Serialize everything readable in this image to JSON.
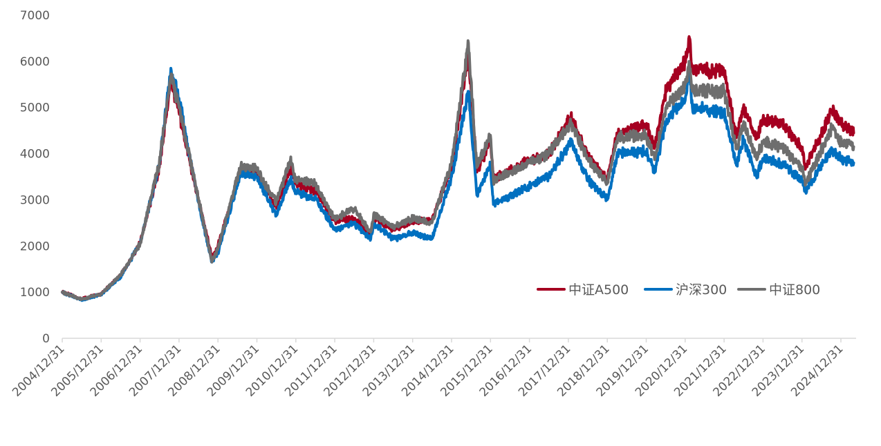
{
  "chart_data": {
    "type": "line",
    "title": "",
    "xlabel": "",
    "ylabel": "",
    "ylim": [
      0,
      7000
    ],
    "yticks": [
      0,
      1000,
      2000,
      3000,
      4000,
      5000,
      6000,
      7000
    ],
    "xticks": [
      "2004/12/31",
      "2005/12/31",
      "2006/12/31",
      "2007/12/31",
      "2008/12/31",
      "2009/12/31",
      "2010/12/31",
      "2011/12/31",
      "2012/12/31",
      "2013/12/31",
      "2014/12/31",
      "2015/12/31",
      "2016/12/31",
      "2017/12/31",
      "2018/12/31",
      "2019/12/31",
      "2020/12/31",
      "2021/12/31",
      "2022/12/31",
      "2023/12/31",
      "2024/12/31"
    ],
    "grid": false,
    "legend_position": "right",
    "series": [
      {
        "name": "中证A500",
        "color": "#A50021",
        "points": [
          [
            "2004/12/31",
            1000
          ],
          [
            "2005/06/30",
            850
          ],
          [
            "2005/12/31",
            960
          ],
          [
            "2006/06/30",
            1350
          ],
          [
            "2006/12/31",
            2050
          ],
          [
            "2007/06/30",
            3700
          ],
          [
            "2007/10/16",
            5600
          ],
          [
            "2007/12/31",
            4900
          ],
          [
            "2008/06/30",
            3000
          ],
          [
            "2008/11/04",
            1750
          ],
          [
            "2008/12/31",
            2000
          ],
          [
            "2009/08/04",
            3650
          ],
          [
            "2009/12/31",
            3550
          ],
          [
            "2010/06/30",
            2850
          ],
          [
            "2010/11/10",
            3700
          ],
          [
            "2010/12/31",
            3350
          ],
          [
            "2011/06/30",
            3200
          ],
          [
            "2011/12/31",
            2550
          ],
          [
            "2012/06/30",
            2600
          ],
          [
            "2012/12/03",
            2250
          ],
          [
            "2012/12/31",
            2600
          ],
          [
            "2013/06/30",
            2350
          ],
          [
            "2013/12/31",
            2550
          ],
          [
            "2014/06/30",
            2550
          ],
          [
            "2014/12/31",
            3700
          ],
          [
            "2015/06/08",
            6200
          ],
          [
            "2015/08/26",
            3600
          ],
          [
            "2015/12/31",
            4300
          ],
          [
            "2016/01/28",
            3450
          ],
          [
            "2016/12/31",
            3850
          ],
          [
            "2017/06/30",
            4000
          ],
          [
            "2018/01/24",
            4800
          ],
          [
            "2018/06/30",
            3950
          ],
          [
            "2018/12/31",
            3450
          ],
          [
            "2019/04/08",
            4450
          ],
          [
            "2019/12/31",
            4600
          ],
          [
            "2020/03/23",
            4150
          ],
          [
            "2020/07/10",
            5400
          ],
          [
            "2020/12/31",
            6000
          ],
          [
            "2021/02/10",
            6500
          ],
          [
            "2021/03/09",
            5800
          ],
          [
            "2021/12/31",
            5800
          ],
          [
            "2022/04/26",
            4350
          ],
          [
            "2022/06/30",
            5000
          ],
          [
            "2022/10/31",
            4350
          ],
          [
            "2022/12/31",
            4750
          ],
          [
            "2023/06/30",
            4650
          ],
          [
            "2023/12/31",
            4100
          ],
          [
            "2024/02/05",
            3700
          ],
          [
            "2024/10/08",
            4950
          ],
          [
            "2024/12/31",
            4650
          ],
          [
            "2025/04/30",
            4450
          ]
        ]
      },
      {
        "name": "沪深300",
        "color": "#0070C0",
        "points": [
          [
            "2004/12/31",
            1000
          ],
          [
            "2005/06/30",
            830
          ],
          [
            "2005/12/31",
            950
          ],
          [
            "2006/06/30",
            1330
          ],
          [
            "2006/12/31",
            2050
          ],
          [
            "2007/06/30",
            3750
          ],
          [
            "2007/10/16",
            5850
          ],
          [
            "2007/12/31",
            5200
          ],
          [
            "2008/06/30",
            2950
          ],
          [
            "2008/11/04",
            1650
          ],
          [
            "2008/12/31",
            1850
          ],
          [
            "2009/08/04",
            3600
          ],
          [
            "2009/12/31",
            3500
          ],
          [
            "2010/06/30",
            2650
          ],
          [
            "2010/11/10",
            3450
          ],
          [
            "2010/12/31",
            3150
          ],
          [
            "2011/06/30",
            3050
          ],
          [
            "2011/12/31",
            2350
          ],
          [
            "2012/06/30",
            2500
          ],
          [
            "2012/12/03",
            2150
          ],
          [
            "2012/12/31",
            2500
          ],
          [
            "2013/06/30",
            2150
          ],
          [
            "2013/12/31",
            2300
          ],
          [
            "2014/06/30",
            2150
          ],
          [
            "2014/12/31",
            3500
          ],
          [
            "2015/06/08",
            5350
          ],
          [
            "2015/08/26",
            3100
          ],
          [
            "2015/12/31",
            3750
          ],
          [
            "2016/01/28",
            2900
          ],
          [
            "2016/12/31",
            3300
          ],
          [
            "2017/06/30",
            3500
          ],
          [
            "2018/01/24",
            4250
          ],
          [
            "2018/06/30",
            3450
          ],
          [
            "2018/12/31",
            3000
          ],
          [
            "2019/04/08",
            4000
          ],
          [
            "2019/12/31",
            4050
          ],
          [
            "2020/03/23",
            3600
          ],
          [
            "2020/07/10",
            4750
          ],
          [
            "2020/12/31",
            5150
          ],
          [
            "2021/02/10",
            5800
          ],
          [
            "2021/03/09",
            5000
          ],
          [
            "2021/12/31",
            4900
          ],
          [
            "2022/04/26",
            3750
          ],
          [
            "2022/06/30",
            4300
          ],
          [
            "2022/10/31",
            3500
          ],
          [
            "2022/12/31",
            3900
          ],
          [
            "2023/06/30",
            3800
          ],
          [
            "2023/12/31",
            3400
          ],
          [
            "2024/02/05",
            3200
          ],
          [
            "2024/10/08",
            4100
          ],
          [
            "2024/12/31",
            3900
          ],
          [
            "2025/04/30",
            3800
          ]
        ]
      },
      {
        "name": "中证800",
        "color": "#6E6E6E",
        "points": [
          [
            "2004/12/31",
            1000
          ],
          [
            "2005/06/30",
            840
          ],
          [
            "2005/12/31",
            960
          ],
          [
            "2006/06/30",
            1360
          ],
          [
            "2006/12/31",
            2050
          ],
          [
            "2007/06/30",
            3800
          ],
          [
            "2007/10/16",
            5700
          ],
          [
            "2007/12/31",
            5000
          ],
          [
            "2008/06/30",
            3050
          ],
          [
            "2008/11/04",
            1650
          ],
          [
            "2008/12/31",
            1950
          ],
          [
            "2009/08/04",
            3750
          ],
          [
            "2009/12/31",
            3650
          ],
          [
            "2010/06/30",
            2950
          ],
          [
            "2010/11/10",
            3850
          ],
          [
            "2010/12/31",
            3450
          ],
          [
            "2011/06/30",
            3350
          ],
          [
            "2011/12/31",
            2600
          ],
          [
            "2012/06/30",
            2800
          ],
          [
            "2012/12/03",
            2300
          ],
          [
            "2012/12/31",
            2700
          ],
          [
            "2013/06/30",
            2400
          ],
          [
            "2013/12/31",
            2600
          ],
          [
            "2014/06/30",
            2500
          ],
          [
            "2014/12/31",
            3800
          ],
          [
            "2015/06/08",
            6400
          ],
          [
            "2015/08/26",
            3700
          ],
          [
            "2015/12/31",
            4400
          ],
          [
            "2016/01/28",
            3400
          ],
          [
            "2016/12/31",
            3800
          ],
          [
            "2017/06/30",
            4000
          ],
          [
            "2018/01/24",
            4650
          ],
          [
            "2018/06/30",
            3900
          ],
          [
            "2018/12/31",
            3350
          ],
          [
            "2019/04/08",
            4350
          ],
          [
            "2019/12/31",
            4400
          ],
          [
            "2020/03/23",
            3900
          ],
          [
            "2020/07/10",
            5050
          ],
          [
            "2020/12/31",
            5500
          ],
          [
            "2021/02/10",
            5900
          ],
          [
            "2021/03/09",
            5350
          ],
          [
            "2021/12/31",
            5350
          ],
          [
            "2022/04/26",
            4100
          ],
          [
            "2022/06/30",
            4650
          ],
          [
            "2022/10/31",
            3900
          ],
          [
            "2022/12/31",
            4250
          ],
          [
            "2023/06/30",
            4150
          ],
          [
            "2023/12/31",
            3700
          ],
          [
            "2024/02/05",
            3350
          ],
          [
            "2024/10/08",
            4550
          ],
          [
            "2024/12/31",
            4250
          ],
          [
            "2025/04/30",
            4150
          ]
        ]
      }
    ]
  }
}
